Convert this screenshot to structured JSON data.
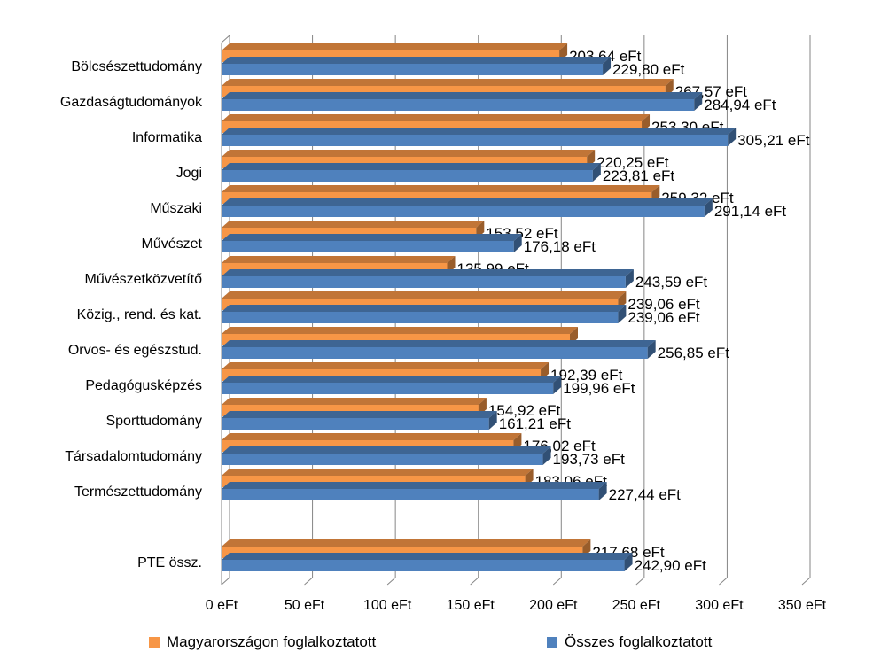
{
  "chart_data": {
    "type": "bar",
    "orientation": "horizontal",
    "style": "3d-clustered",
    "categories": [
      "Bölcsészettudomány",
      "Gazdaságtudományok",
      "Informatika",
      "Jogi",
      "Műszaki",
      "Művészet",
      "Művészetközvetítő",
      "Közig., rend. és kat.",
      "Orvos- és egészstud.",
      "Pedagógusképzés",
      "Sporttudomány",
      "Társadalomtudomány",
      "Természettudomány",
      "",
      "PTE össz."
    ],
    "series": [
      {
        "name": "Magyarországon foglalkoztatott",
        "color": "#F79646",
        "values": [
          203.64,
          267.57,
          253.3,
          220.25,
          259.32,
          153.52,
          135.99,
          239.06,
          210.0,
          192.39,
          154.92,
          176.02,
          183.06,
          null,
          217.68
        ],
        "labels": [
          "203,64 eFt",
          "267,57 eFt",
          "253,30 eFt",
          "220,25 eFt",
          "259,32 eFt",
          "153,52 eFt",
          "135,99 eFt",
          "239,06 eFt",
          "",
          "192,39 eFt",
          "154,92 eFt",
          "176,02 eFt",
          "183,06 eFt",
          "",
          "217,68 eFt"
        ]
      },
      {
        "name": "Összes foglalkoztatott",
        "color": "#4F81BD",
        "values": [
          229.8,
          284.94,
          305.21,
          223.81,
          291.14,
          176.18,
          243.59,
          239.06,
          256.85,
          199.96,
          161.21,
          193.73,
          227.44,
          null,
          242.9
        ],
        "labels": [
          "229,80 eFt",
          "284,94 eFt",
          "305,21 eFt",
          "223,81 eFt",
          "291,14 eFt",
          "176,18 eFt",
          "243,59 eFt",
          "239,06 eFt",
          "256,85 eFt",
          "199,96 eFt",
          "161,21 eFt",
          "193,73 eFt",
          "227,44 eFt",
          "",
          "242,90 eFt"
        ]
      }
    ],
    "x_ticks": [
      "0 eFt",
      "50 eFt",
      "100 eFt",
      "150 eFt",
      "200 eFt",
      "250 eFt",
      "300 eFt",
      "350 eFt"
    ],
    "xlim": [
      0,
      350
    ],
    "title": "",
    "xlabel": "",
    "ylabel": "",
    "grid": true,
    "legend_position": "bottom"
  }
}
